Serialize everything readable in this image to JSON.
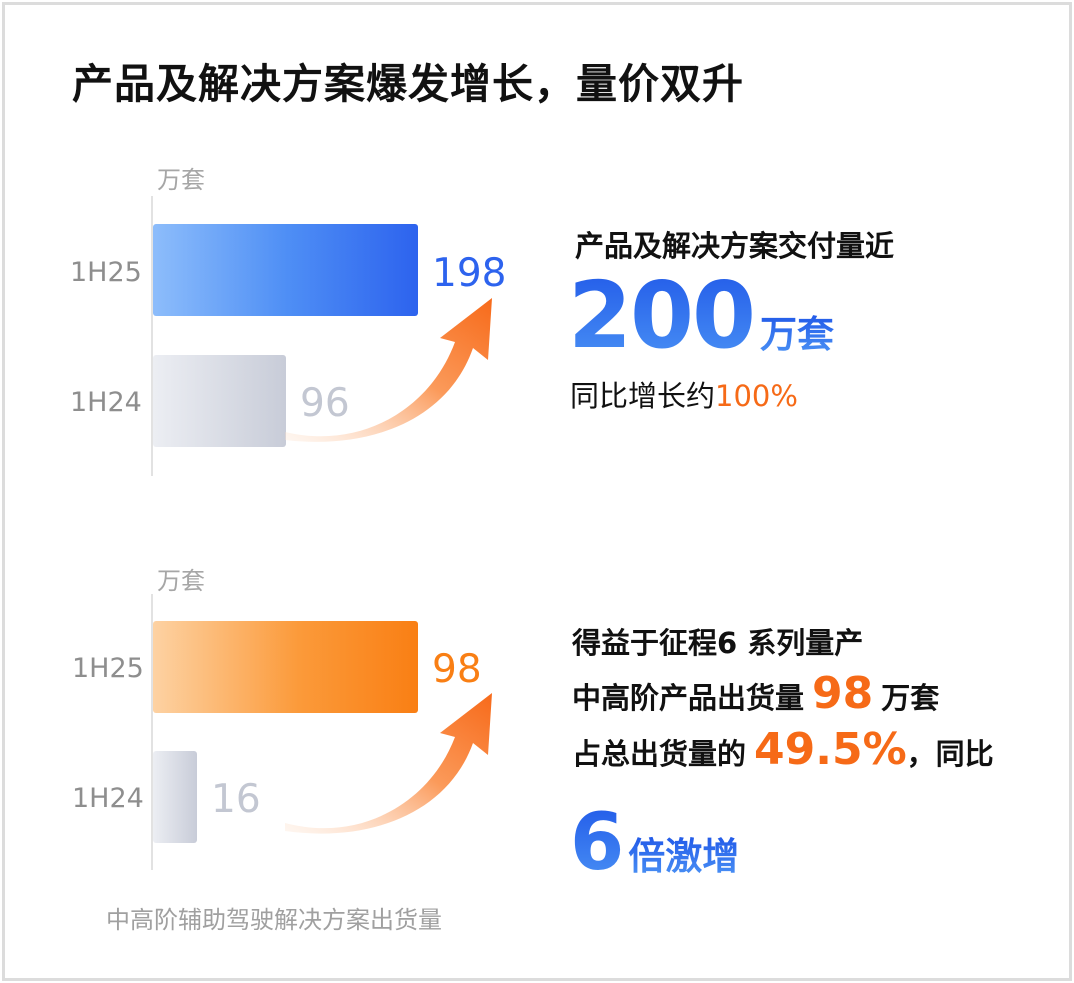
{
  "title_main": "产品及解决方案爆发增长，",
  "title_highlight": "量价双升",
  "chart_data": [
    {
      "type": "bar",
      "orientation": "horizontal",
      "unit_label": "万套",
      "categories": [
        "1H25",
        "1H24"
      ],
      "values": [
        198,
        96
      ],
      "xlim": [
        0,
        198
      ],
      "colors": [
        "#2d63ee",
        "#c8ccd8"
      ]
    },
    {
      "type": "bar",
      "orientation": "horizontal",
      "unit_label": "万套",
      "categories": [
        "1H25",
        "1H24"
      ],
      "values": [
        98,
        16
      ],
      "xlim": [
        0,
        98
      ],
      "colors": [
        "#f97f14",
        "#c8ccd8"
      ],
      "caption": "中高阶辅助驾驶解决方案出货量"
    }
  ],
  "panel1": {
    "line1": "产品及解决方案交付量近",
    "big_number": "200",
    "big_unit": "万套",
    "growth_prefix": "同比增长约",
    "growth_value": "100%"
  },
  "panel2": {
    "line1": "得益于征程6 系列量产",
    "line2_prefix": "中高阶产品出货量",
    "line2_value": "98",
    "line2_unit": "万套",
    "line3_prefix": "占总出货量的",
    "line3_value": "49.5%",
    "line3_suffix": "，同比",
    "line4_number": "6",
    "line4_text": "倍激增"
  },
  "colors": {
    "blue": "#2d63ee",
    "orange": "#f97f14",
    "gray": "#c8ccd8",
    "highlight": "#fb9a1e"
  }
}
